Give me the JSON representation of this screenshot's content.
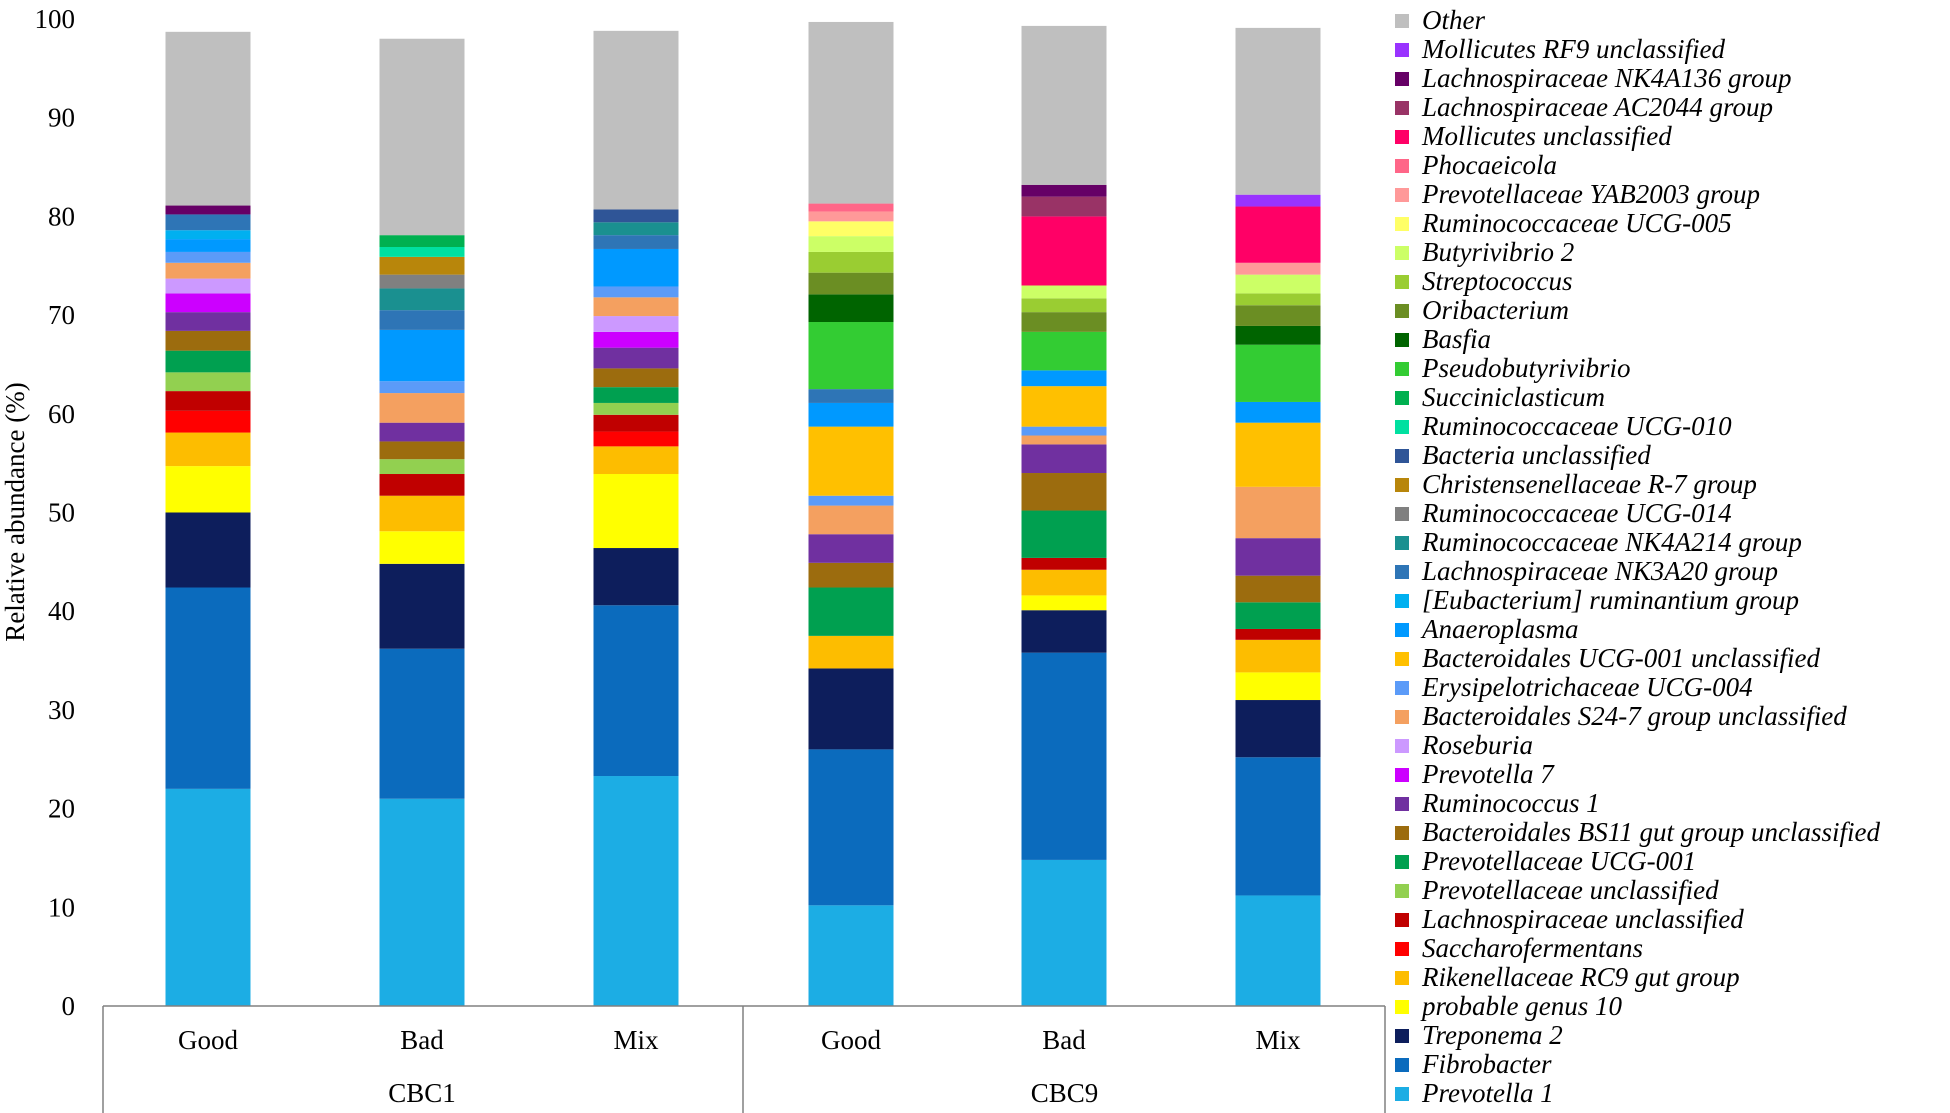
{
  "chart_data": {
    "type": "stacked-bar",
    "ylabel": "Relative abundance (%)",
    "ylim": [
      0,
      100
    ],
    "yticks": [
      "0",
      "10",
      "20",
      "30",
      "40",
      "50",
      "60",
      "70",
      "80",
      "90",
      "100"
    ],
    "categories": [
      "Good",
      "Bad",
      "Mix",
      "Good",
      "Bad",
      "Mix"
    ],
    "groups": [
      {
        "label": "CBC1",
        "span": [
          0,
          2
        ]
      },
      {
        "label": "CBC9",
        "span": [
          3,
          5
        ]
      }
    ],
    "series": [
      {
        "name": "Prevotella 1",
        "color": "#1CADE4",
        "values": [
          22,
          21,
          23.3,
          10.2,
          14.8,
          11.2
        ]
      },
      {
        "name": "Fibrobacter",
        "color": "#0B6BBD",
        "values": [
          20.4,
          15.2,
          17.3,
          15.8,
          21,
          14
        ]
      },
      {
        "name": "Treponema 2",
        "color": "#0D1E5C",
        "values": [
          7.6,
          8.6,
          5.8,
          8.2,
          4.3,
          5.8
        ]
      },
      {
        "name": "probable genus 10",
        "color": "#FFFF00",
        "values": [
          4.7,
          3.3,
          7.5,
          0,
          1.5,
          2.8
        ]
      },
      {
        "name": "Rikenellaceae RC9 gut group",
        "color": "#FDBD00",
        "values": [
          3.4,
          3.6,
          2.8,
          3.3,
          2.6,
          3.3
        ]
      },
      {
        "name": "Saccharofermentans",
        "color": "#FF0000",
        "values": [
          2.2,
          0,
          1.5,
          0,
          0,
          0
        ]
      },
      {
        "name": "Lachnospiraceae unclassified",
        "color": "#C00000",
        "values": [
          2,
          2.2,
          1.7,
          0,
          1.2,
          1.1
        ]
      },
      {
        "name": "Prevotellaceae unclassified",
        "color": "#92D050",
        "values": [
          1.9,
          1.5,
          1.2,
          0,
          0,
          0
        ]
      },
      {
        "name": "Prevotellaceae UCG-001",
        "color": "#00A050",
        "values": [
          2.2,
          0,
          1.6,
          4.9,
          4.8,
          2.7
        ]
      },
      {
        "name": "Bacteroidales BS11 gut group unclassified",
        "color": "#9C6C0E",
        "values": [
          2,
          1.8,
          1.9,
          2.5,
          3.8,
          2.7
        ]
      },
      {
        "name": "Ruminococcus 1",
        "color": "#7030A0",
        "values": [
          1.9,
          1.9,
          2.1,
          2.9,
          2.9,
          3.8
        ]
      },
      {
        "name": "Prevotella 7",
        "color": "#CC00FF",
        "values": [
          1.9,
          0,
          1.6,
          0,
          0,
          0
        ]
      },
      {
        "name": "Roseburia",
        "color": "#CC99FF",
        "values": [
          1.5,
          0,
          1.6,
          0,
          0,
          0
        ]
      },
      {
        "name": "Bacteroidales S24-7 group unclassified",
        "color": "#F4A060",
        "values": [
          1.6,
          3,
          1.9,
          2.9,
          0.9,
          5.2
        ]
      },
      {
        "name": "Erysipelotrichaceae UCG-004",
        "color": "#5B9BF8",
        "values": [
          1.1,
          1.2,
          1.1,
          1,
          0.9,
          0
        ]
      },
      {
        "name": "Bacteroidales UCG-001 unclassified",
        "color": "#FFC000",
        "values": [
          0,
          0,
          0,
          7,
          4.1,
          6.5
        ]
      },
      {
        "name": "Anaeroplasma",
        "color": "#0099FF",
        "values": [
          1.3,
          5.2,
          3.8,
          2.4,
          1.6,
          2.1
        ]
      },
      {
        "name": "[Eubacterium] ruminantium group",
        "color": "#00B0F0",
        "values": [
          0.9,
          0,
          0,
          0,
          0,
          0
        ]
      },
      {
        "name": "Lachnospiraceae NK3A20 group",
        "color": "#2E75B6",
        "values": [
          1.6,
          2,
          1.4,
          1.4,
          0,
          0
        ]
      },
      {
        "name": "Ruminococcaceae NK4A214 group",
        "color": "#1A9090",
        "values": [
          0,
          2.2,
          1.3,
          0,
          0,
          0
        ]
      },
      {
        "name": "Ruminococcaceae UCG-014",
        "color": "#808080",
        "values": [
          0,
          1.4,
          0,
          0,
          0,
          0
        ]
      },
      {
        "name": "Christensenellaceae R-7 group",
        "color": "#B8860B",
        "values": [
          0,
          1.8,
          0,
          0,
          0,
          0
        ]
      },
      {
        "name": "Bacteria unclassified",
        "color": "#2F5597",
        "values": [
          0,
          0,
          1.3,
          0,
          0,
          0
        ]
      },
      {
        "name": "Ruminococcaceae UCG-010",
        "color": "#00E0A0",
        "values": [
          0,
          1,
          0,
          0,
          0,
          0
        ]
      },
      {
        "name": "Succiniclasticum",
        "color": "#00B050",
        "values": [
          0,
          1.2,
          0,
          0,
          0,
          0
        ]
      },
      {
        "name": "Pseudobutyrivibrio",
        "color": "#33CC33",
        "values": [
          0,
          0,
          0,
          6.8,
          3.9,
          5.8
        ]
      },
      {
        "name": "Basfia",
        "color": "#006400",
        "values": [
          0,
          0,
          0,
          2.8,
          0,
          1.9
        ]
      },
      {
        "name": "Oribacterium",
        "color": "#6B8E23",
        "values": [
          0,
          0,
          0,
          2.2,
          2,
          2.1
        ]
      },
      {
        "name": "Streptococcus",
        "color": "#9ACD32",
        "values": [
          0,
          0,
          0,
          2.1,
          1.4,
          1.2
        ]
      },
      {
        "name": "Butyrivibrio 2",
        "color": "#CCFF66",
        "values": [
          0,
          0,
          0,
          1.6,
          1.3,
          1.9
        ]
      },
      {
        "name": "Ruminococcaceae UCG-005",
        "color": "#FFFF66",
        "values": [
          0,
          0,
          0,
          1.5,
          0,
          0
        ]
      },
      {
        "name": "Prevotellaceae YAB2003 group",
        "color": "#FF9999",
        "values": [
          0,
          0,
          0,
          1,
          0,
          1.2
        ]
      },
      {
        "name": "Phocaeicola",
        "color": "#FF6688",
        "values": [
          0,
          0,
          0,
          0.8,
          0,
          0
        ]
      },
      {
        "name": "Mollicutes unclassified",
        "color": "#FF0066",
        "values": [
          0,
          0,
          0,
          0,
          7,
          5.7
        ]
      },
      {
        "name": "Lachnospiraceae AC2044 group",
        "color": "#993366",
        "values": [
          0,
          0,
          0,
          0,
          2,
          0
        ]
      },
      {
        "name": "Lachnospiraceae NK4A136 group",
        "color": "#660066",
        "values": [
          0.9,
          0,
          0,
          0,
          1.2,
          0
        ]
      },
      {
        "name": "Mollicutes RF9 unclassified",
        "color": "#9933FF",
        "values": [
          0,
          0,
          0,
          0,
          0,
          1.2
        ]
      },
      {
        "name": "Other",
        "color": "#BFBFBF",
        "values": [
          17.6,
          19.9,
          18.1,
          18.4,
          16.1,
          16.9
        ]
      }
    ]
  }
}
